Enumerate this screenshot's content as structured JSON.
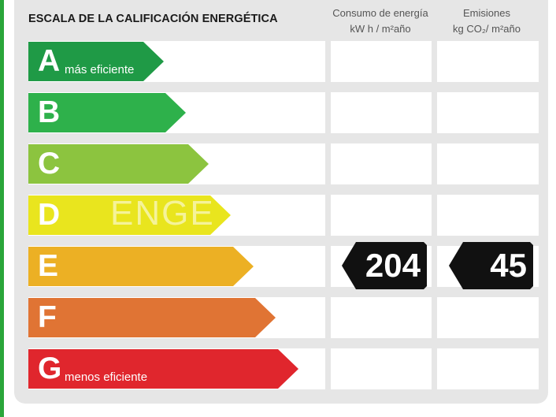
{
  "title": "ESCALA DE LA CALIFICACIÓN ENERGÉTICA",
  "columns": {
    "consumo": {
      "line1": "Consumo de energía",
      "line2": "kW h / m²año"
    },
    "emisiones": {
      "line1": "Emisiones",
      "line2": "kg CO₂/ m²año"
    }
  },
  "ratings": [
    {
      "letter": "A",
      "sublabel": "más eficiente",
      "color": "#1f9a46"
    },
    {
      "letter": "B",
      "sublabel": "",
      "color": "#2eb14b"
    },
    {
      "letter": "C",
      "sublabel": "",
      "color": "#8cc43f"
    },
    {
      "letter": "D",
      "sublabel": "",
      "color": "#e9e51e"
    },
    {
      "letter": "E",
      "sublabel": "",
      "color": "#ecb024"
    },
    {
      "letter": "F",
      "sublabel": "",
      "color": "#e07434"
    },
    {
      "letter": "G",
      "sublabel": "menos eficiente",
      "color": "#e0262d"
    }
  ],
  "result": {
    "rating": "E",
    "consumo": "204",
    "emisiones": "45"
  },
  "watermark": "ENGE"
}
